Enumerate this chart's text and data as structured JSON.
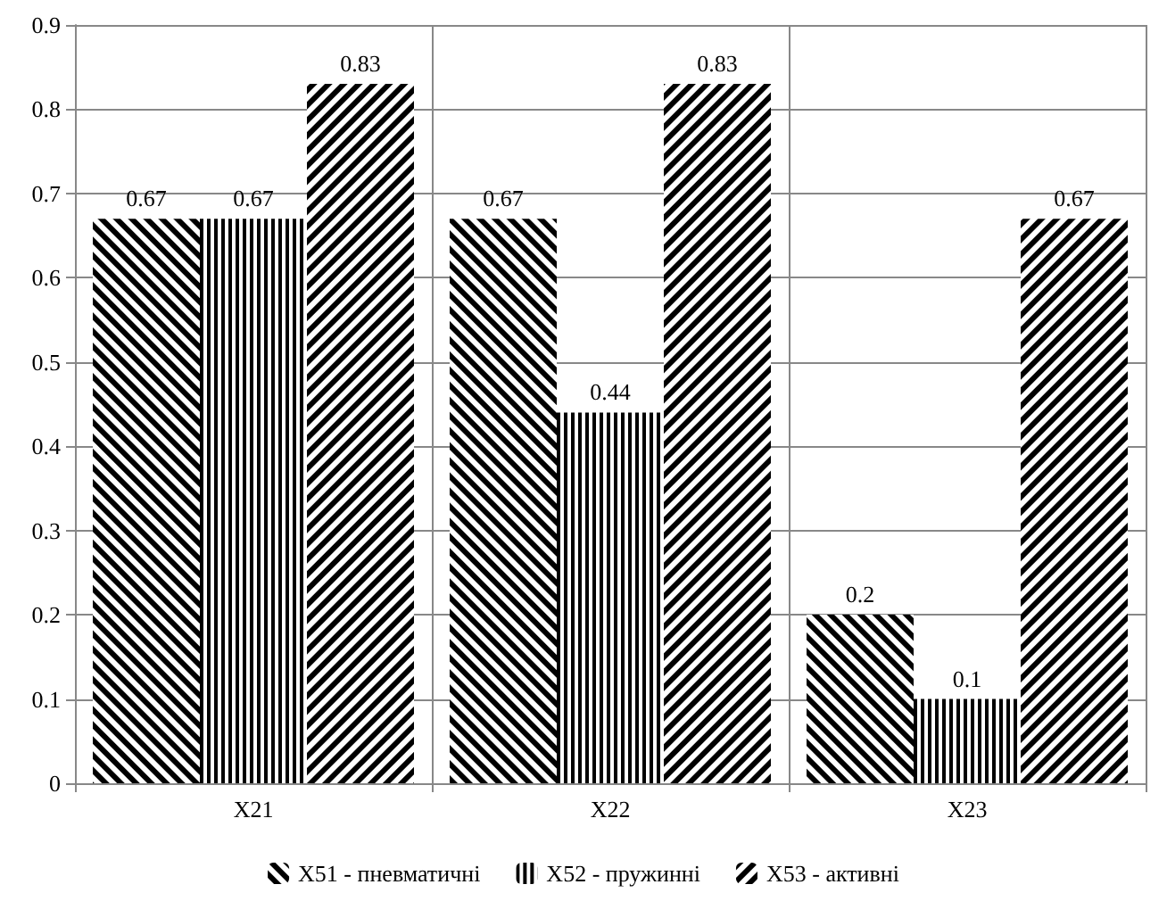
{
  "chart_data": {
    "type": "bar",
    "categories": [
      "X21",
      "X22",
      "X23"
    ],
    "series": [
      {
        "name": "X51 - пневматичні",
        "color": "#000000",
        "values": [
          0.67,
          0.67,
          0.2
        ]
      },
      {
        "name": "X52 - пружинні",
        "color": "#000000",
        "values": [
          0.67,
          0.44,
          0.1
        ]
      },
      {
        "name": "X53 - активні",
        "color": "#000000",
        "values": [
          0.83,
          0.83,
          0.67
        ]
      }
    ],
    "ylim": [
      0,
      0.9
    ],
    "yticks": [
      0,
      0.1,
      0.2,
      0.3,
      0.4,
      0.5,
      0.6,
      0.7,
      0.8,
      0.9
    ],
    "grid": true,
    "legend": "bottom",
    "data_labels": true
  }
}
